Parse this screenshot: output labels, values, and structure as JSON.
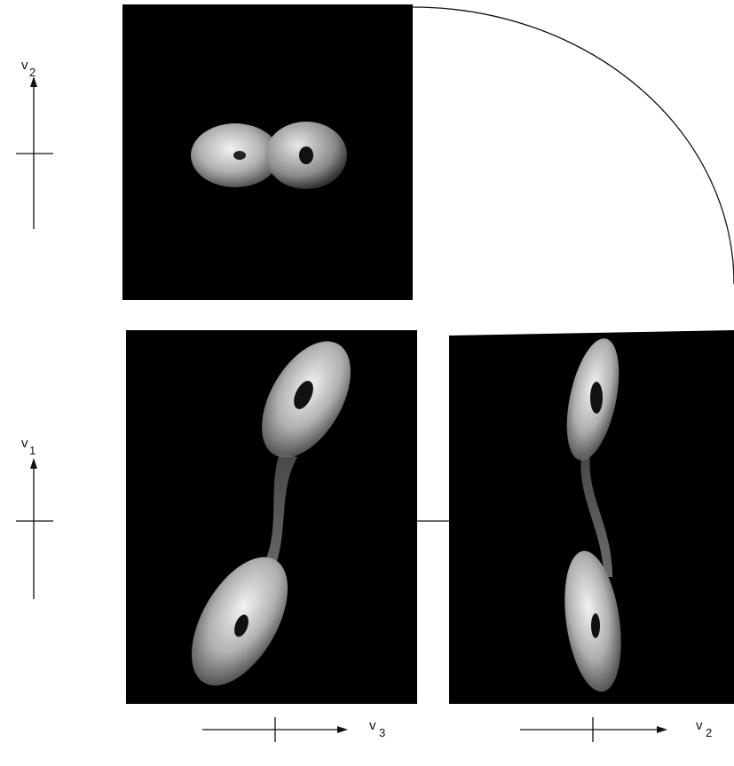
{
  "axes": [
    {
      "label": "v",
      "subscript": "2"
    },
    {
      "label": "v",
      "subscript": "1"
    },
    {
      "label": "v",
      "subscript": "3"
    },
    {
      "label": "v",
      "subscript": "2"
    }
  ]
}
